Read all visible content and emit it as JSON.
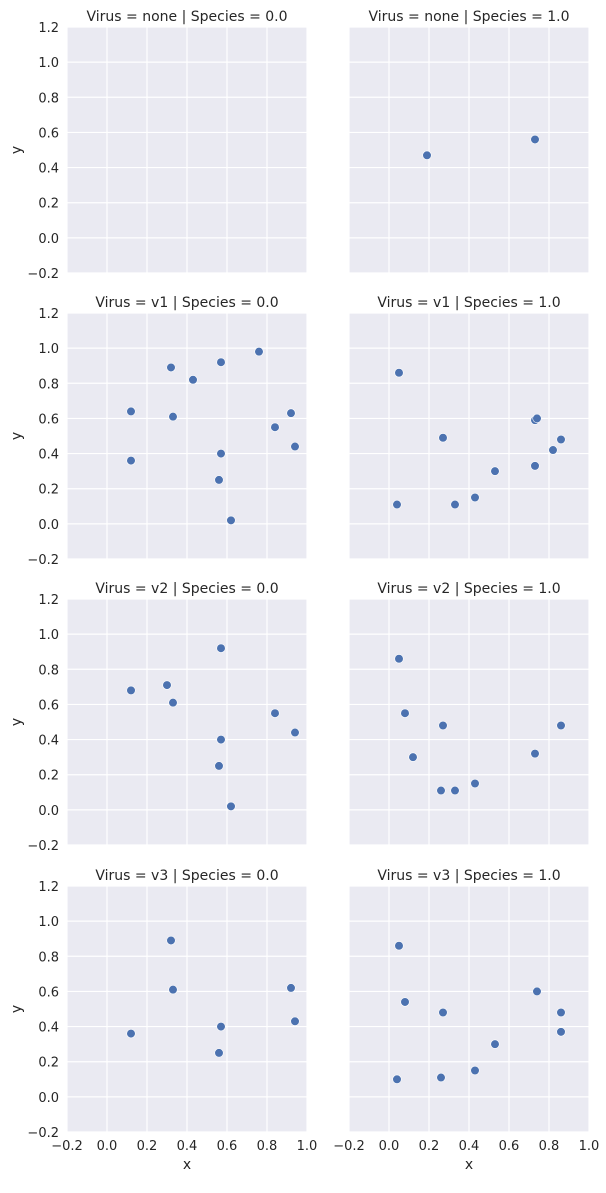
{
  "chart_data": {
    "type": "scatter",
    "layout": "facet-grid",
    "row_variable": "Virus",
    "col_variable": "Species",
    "xlabel": "x",
    "ylabel": "y",
    "xlim": [
      -0.2,
      1.0
    ],
    "ylim": [
      -0.2,
      1.2
    ],
    "xticks": [
      -0.2,
      0.0,
      0.2,
      0.4,
      0.6,
      0.8,
      1.0
    ],
    "yticks": [
      -0.2,
      0.0,
      0.2,
      0.4,
      0.6,
      0.8,
      1.0,
      1.2
    ],
    "grid": true,
    "colors": {
      "point": "#4c72b0",
      "point_edge": "#ffffff",
      "background": "#eaeaf2",
      "gridline": "#ffffff",
      "text": "#262626"
    },
    "panels": [
      {
        "title": "Virus = none | Species = 0.0",
        "points": []
      },
      {
        "title": "Virus = none | Species = 1.0",
        "points": [
          [
            0.19,
            0.47
          ],
          [
            0.73,
            0.56
          ]
        ]
      },
      {
        "title": "Virus = v1 | Species = 0.0",
        "points": [
          [
            0.12,
            0.64
          ],
          [
            0.12,
            0.36
          ],
          [
            0.32,
            0.89
          ],
          [
            0.33,
            0.61
          ],
          [
            0.43,
            0.82
          ],
          [
            0.57,
            0.92
          ],
          [
            0.57,
            0.4
          ],
          [
            0.56,
            0.25
          ],
          [
            0.62,
            0.02
          ],
          [
            0.76,
            0.98
          ],
          [
            0.84,
            0.55
          ],
          [
            0.92,
            0.63
          ],
          [
            0.94,
            0.44
          ]
        ]
      },
      {
        "title": "Virus = v1 | Species = 1.0",
        "points": [
          [
            0.05,
            0.86
          ],
          [
            0.04,
            0.11
          ],
          [
            0.27,
            0.49
          ],
          [
            0.33,
            0.11
          ],
          [
            0.43,
            0.15
          ],
          [
            0.53,
            0.3
          ],
          [
            0.73,
            0.59
          ],
          [
            0.74,
            0.6
          ],
          [
            0.73,
            0.33
          ],
          [
            0.82,
            0.42
          ],
          [
            0.86,
            0.48
          ]
        ]
      },
      {
        "title": "Virus = v2 | Species = 0.0",
        "points": [
          [
            0.12,
            0.68
          ],
          [
            0.3,
            0.71
          ],
          [
            0.33,
            0.61
          ],
          [
            0.57,
            0.92
          ],
          [
            0.57,
            0.4
          ],
          [
            0.56,
            0.25
          ],
          [
            0.62,
            0.02
          ],
          [
            0.84,
            0.55
          ],
          [
            0.94,
            0.44
          ]
        ]
      },
      {
        "title": "Virus = v2 | Species = 1.0",
        "points": [
          [
            0.05,
            0.86
          ],
          [
            0.08,
            0.55
          ],
          [
            0.12,
            0.3
          ],
          [
            0.26,
            0.11
          ],
          [
            0.27,
            0.48
          ],
          [
            0.33,
            0.11
          ],
          [
            0.43,
            0.15
          ],
          [
            0.73,
            0.32
          ],
          [
            0.86,
            0.48
          ]
        ]
      },
      {
        "title": "Virus = v3 | Species = 0.0",
        "points": [
          [
            0.12,
            0.36
          ],
          [
            0.32,
            0.89
          ],
          [
            0.33,
            0.61
          ],
          [
            0.57,
            0.4
          ],
          [
            0.56,
            0.25
          ],
          [
            0.92,
            0.62
          ],
          [
            0.94,
            0.43
          ]
        ]
      },
      {
        "title": "Virus = v3 | Species = 1.0",
        "points": [
          [
            0.05,
            0.86
          ],
          [
            0.04,
            0.1
          ],
          [
            0.08,
            0.54
          ],
          [
            0.26,
            0.11
          ],
          [
            0.27,
            0.48
          ],
          [
            0.43,
            0.15
          ],
          [
            0.53,
            0.3
          ],
          [
            0.74,
            0.6
          ],
          [
            0.86,
            0.48
          ],
          [
            0.86,
            0.37
          ]
        ]
      }
    ]
  }
}
